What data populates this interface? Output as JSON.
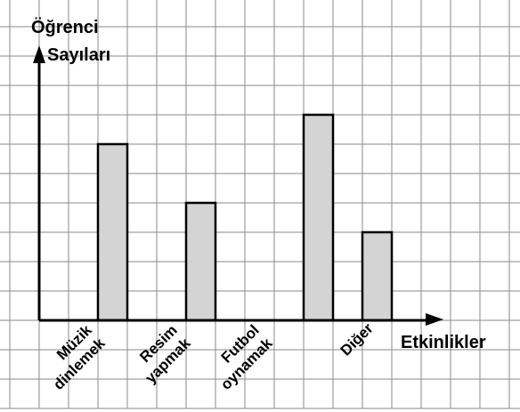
{
  "chart_data": {
    "type": "bar",
    "ylabel_lines": [
      "Öğrenci",
      "Sayıları"
    ],
    "xlabel": "Etkinlikler",
    "categories": [
      "Müzik dinlemek",
      "Resim yapmak",
      "Futbol oynamak",
      "Diğer"
    ],
    "category_label_lines": [
      [
        "Müzik",
        "dinlemek"
      ],
      [
        "Resim",
        "yapmak"
      ],
      [
        "Futbol",
        "oynamak"
      ],
      [
        "Diğer"
      ]
    ],
    "values": [
      6,
      4,
      7,
      3
    ],
    "ylim": [
      0,
      10
    ],
    "grid": true,
    "colors": {
      "bar_fill": "#d4d4d4",
      "bar_stroke": "#000000",
      "grid": "#8a8a8a",
      "axis": "#000000"
    }
  }
}
